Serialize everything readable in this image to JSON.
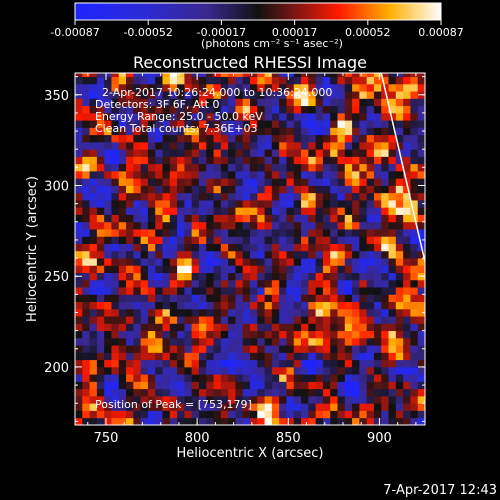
{
  "chart_data": {
    "type": "heatmap",
    "title": "Reconstructed RHESSI Image",
    "xlabel": "Heliocentric X (arcsec)",
    "ylabel": "Heliocentric Y (arcsec)",
    "xlim": [
      733,
      925
    ],
    "ylim": [
      168,
      362
    ],
    "x_ticks": [
      "750",
      "800",
      "850",
      "900"
    ],
    "y_ticks": [
      "200",
      "250",
      "300",
      "350"
    ],
    "colorbar": {
      "min": -0.00087,
      "max": 0.00087,
      "ticks": [
        "-0.00087",
        "-0.00052",
        "-0.00017",
        "0.00017",
        "0.00052",
        "0.00087"
      ],
      "unit_label": "(photons cm⁻² s⁻¹ asec⁻²)"
    },
    "annotations": {
      "time_range": "2-Apr-2017 10:26:24.000 to 10:36:24.000",
      "detectors": "Detectors: 3F 6F, Att 0",
      "energy_range": "Energy Range: 25.0 - 50.0 keV",
      "clean_counts": "Clean    Total counts: 7.36E+03",
      "peak_position": "Position of Peak = [753,179]"
    },
    "limb_line": [
      [
        901,
        362
      ],
      [
        925,
        258
      ]
    ],
    "footer": "7-Apr-2017 12:43",
    "image_grid": {
      "x_start": 733,
      "x_step": 4,
      "columns": 48,
      "y_start": 168,
      "y_step": 4,
      "rows": 49
    }
  }
}
